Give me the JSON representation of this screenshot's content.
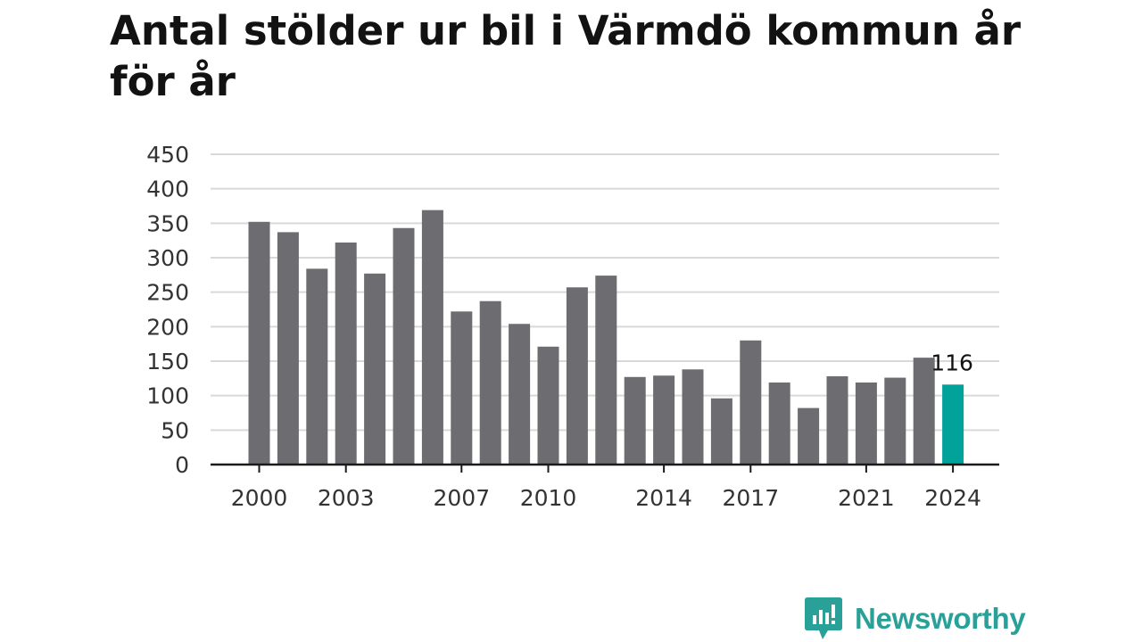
{
  "header": {
    "title": "Antal stölder ur bil i Värmdö kommun år för år"
  },
  "chart_data": {
    "type": "bar",
    "title": "Antal stölder ur bil i Värmdö kommun år för år",
    "xlabel": "",
    "ylabel": "",
    "categories": [
      "2000",
      "2001",
      "2002",
      "2003",
      "2004",
      "2005",
      "2006",
      "2007",
      "2008",
      "2009",
      "2010",
      "2011",
      "2012",
      "2013",
      "2014",
      "2015",
      "2016",
      "2017",
      "2018",
      "2019",
      "2020",
      "2021",
      "2022",
      "2023",
      "2024"
    ],
    "values": [
      352,
      337,
      284,
      322,
      277,
      343,
      369,
      222,
      237,
      204,
      171,
      257,
      274,
      127,
      129,
      138,
      96,
      180,
      119,
      82,
      128,
      119,
      126,
      155,
      116
    ],
    "x_tick_labels": [
      "2000",
      "2003",
      "2007",
      "2010",
      "2014",
      "2017",
      "2021",
      "2024"
    ],
    "y_ticks": [
      0,
      50,
      100,
      150,
      200,
      250,
      300,
      350,
      400,
      450
    ],
    "ylim": [
      0,
      450
    ],
    "grid": true,
    "highlight": {
      "category": "2024",
      "label": "116"
    },
    "colors": {
      "bar": "#6d6c71",
      "highlight": "#00a29a",
      "grid": "#d9d9d9",
      "axis": "#1a1a1a"
    }
  },
  "brand": {
    "name": "Newsworthy",
    "icon": "newsworthy-logo-icon",
    "color": "#2aa198"
  }
}
